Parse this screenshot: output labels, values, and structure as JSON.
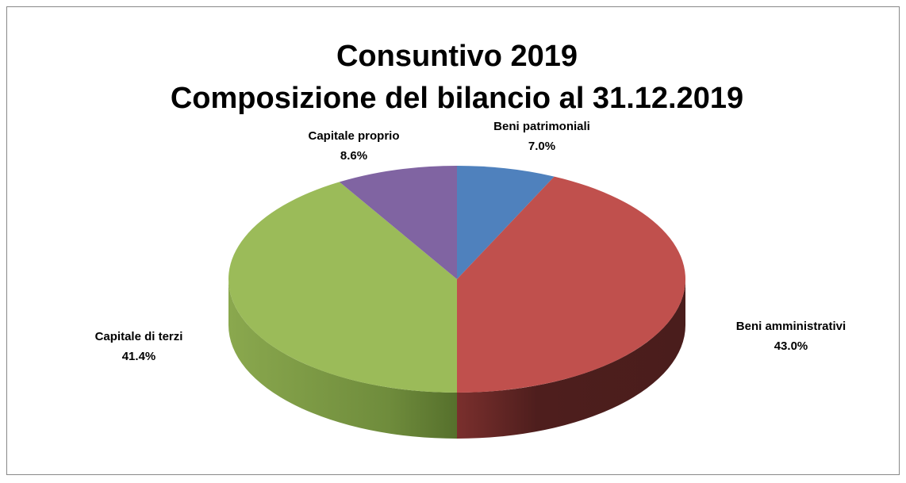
{
  "chart_data": {
    "type": "pie3d",
    "title": "Consuntivo 2019",
    "subtitle": "Composizione del bilancio al 31.12.2019",
    "categories": [
      "Beni patrimoniali",
      "Beni amministrativi",
      "Capitale di terzi",
      "Capitale proprio"
    ],
    "values": [
      7.0,
      43.0,
      41.4,
      8.6
    ],
    "value_labels": [
      "7.0%",
      "43.0%",
      "41.4%",
      "8.6%"
    ],
    "colors": [
      "#4f81bd",
      "#c0504d",
      "#9bbb59",
      "#8064a2"
    ]
  }
}
